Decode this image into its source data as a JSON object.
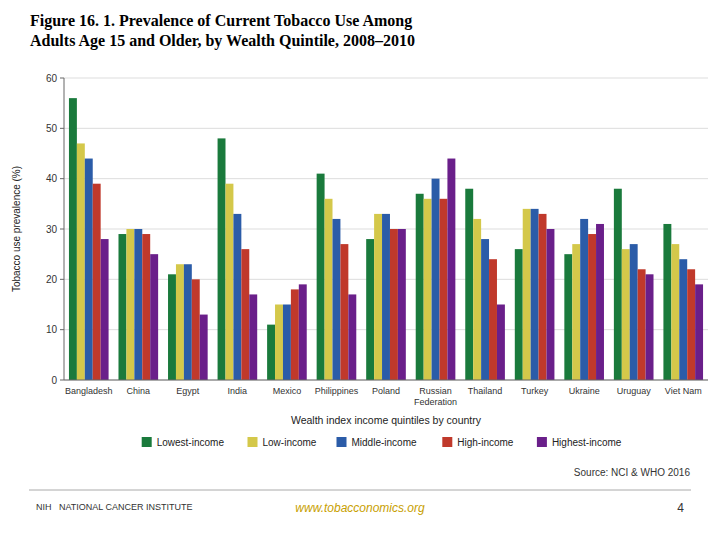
{
  "chart_data": {
    "type": "bar",
    "title": "Figure 16. 1. Prevalence of Current Tobacco Use Among\nAdults Age 15 and Older, by Wealth Quintile, 2008–2010",
    "y_label": "Tobacco use prevalence (%)",
    "x_label": "Wealth index income quintiles by country",
    "categories": [
      "Bangladesh",
      "China",
      "Egypt",
      "India",
      "Mexico",
      "Philippines",
      "Poland",
      "Russian\nFederation",
      "Thailand",
      "Turkey",
      "Ukraine",
      "Uruguay",
      "Viet Nam"
    ],
    "series": [
      {
        "name": "Lowest-income",
        "color": "#1a7a3c",
        "values": [
          56,
          29,
          21,
          48,
          11,
          41,
          28,
          37,
          38,
          26,
          25,
          38,
          31
        ]
      },
      {
        "name": "Low-income",
        "color": "#d4c84a",
        "values": [
          47,
          30,
          23,
          39,
          15,
          36,
          33,
          36,
          32,
          34,
          27,
          26,
          27
        ]
      },
      {
        "name": "Middle-income",
        "color": "#2b5ca8",
        "values": [
          44,
          30,
          23,
          33,
          15,
          32,
          33,
          40,
          28,
          34,
          32,
          27,
          24
        ]
      },
      {
        "name": "High-income",
        "color": "#c0392b",
        "values": [
          39,
          29,
          20,
          26,
          18,
          27,
          30,
          36,
          24,
          33,
          29,
          22,
          22
        ]
      },
      {
        "name": "Highest-income",
        "color": "#6a1f8a",
        "values": [
          28,
          25,
          13,
          17,
          19,
          17,
          30,
          44,
          15,
          30,
          31,
          21,
          19
        ]
      }
    ],
    "ylim": [
      0,
      60
    ],
    "yticks": [
      0,
      10,
      20,
      30,
      40,
      50,
      60
    ],
    "grid": true,
    "legend": "bottom",
    "annotations": [
      "Source: NCI & WHO 2016",
      "NIH   NATIONAL CANCER INSTITUTE",
      "www.tobacconomics.org",
      "4"
    ]
  }
}
